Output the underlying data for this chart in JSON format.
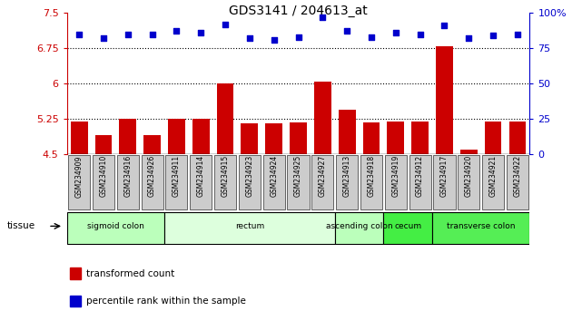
{
  "title": "GDS3141 / 204613_at",
  "samples": [
    "GSM234909",
    "GSM234910",
    "GSM234916",
    "GSM234926",
    "GSM234911",
    "GSM234914",
    "GSM234915",
    "GSM234923",
    "GSM234924",
    "GSM234925",
    "GSM234927",
    "GSM234913",
    "GSM234918",
    "GSM234919",
    "GSM234912",
    "GSM234917",
    "GSM234920",
    "GSM234921",
    "GSM234922"
  ],
  "bar_values": [
    5.2,
    4.9,
    5.25,
    4.9,
    5.25,
    5.25,
    6.0,
    5.15,
    5.15,
    5.17,
    6.04,
    5.45,
    5.17,
    5.2,
    5.2,
    6.8,
    4.6,
    5.2,
    5.2
  ],
  "dot_values": [
    85,
    82,
    85,
    85,
    87,
    86,
    92,
    82,
    81,
    83,
    97,
    87,
    83,
    86,
    85,
    91,
    82,
    84,
    85
  ],
  "ylim_left": [
    4.5,
    7.5
  ],
  "ylim_right": [
    0,
    100
  ],
  "yticks_left": [
    4.5,
    5.25,
    6.0,
    6.75,
    7.5
  ],
  "ytick_labels_left": [
    "4.5",
    "5.25",
    "6",
    "6.75",
    "7.5"
  ],
  "yticks_right": [
    0,
    25,
    50,
    75,
    100
  ],
  "ytick_labels_right": [
    "0",
    "25",
    "50",
    "75",
    "100%"
  ],
  "hlines": [
    5.25,
    6.0,
    6.75
  ],
  "bar_color": "#cc0000",
  "dot_color": "#0000cc",
  "tissue_groups": [
    {
      "label": "sigmoid colon",
      "start": 0,
      "end": 4,
      "color": "#bbffbb"
    },
    {
      "label": "rectum",
      "start": 4,
      "end": 11,
      "color": "#ddffdd"
    },
    {
      "label": "ascending colon",
      "start": 11,
      "end": 13,
      "color": "#bbffbb"
    },
    {
      "label": "cecum",
      "start": 13,
      "end": 15,
      "color": "#44ee44"
    },
    {
      "label": "transverse colon",
      "start": 15,
      "end": 19,
      "color": "#55ee55"
    }
  ],
  "legend_bar_label": "transformed count",
  "legend_dot_label": "percentile rank within the sample",
  "tissue_label": "tissue",
  "tick_bg_color": "#cccccc",
  "plot_bg_color": "#ffffff"
}
